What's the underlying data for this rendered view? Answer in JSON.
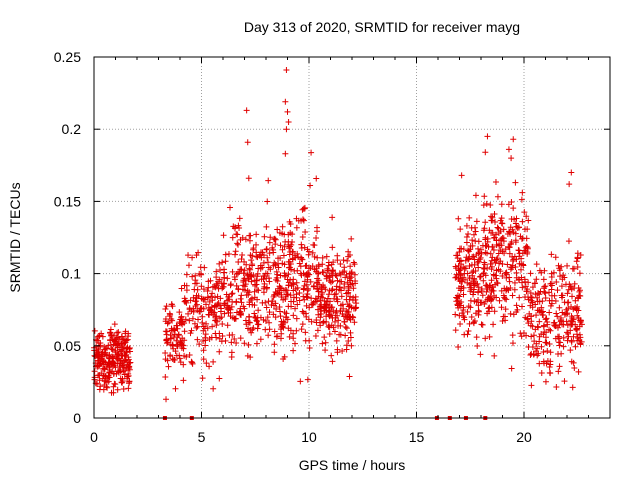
{
  "chart_data": {
    "type": "scatter",
    "title": "Day 313 of 2020, SRMTID for receiver mayg",
    "xlabel": "GPS time / hours",
    "ylabel": "SRMTID / TECUs",
    "xlim": [
      0,
      24
    ],
    "ylim": [
      0,
      0.25
    ],
    "x_ticks": [
      0,
      5,
      10,
      15,
      20
    ],
    "y_ticks": [
      0,
      0.05,
      0.1,
      0.15,
      0.2,
      0.25
    ],
    "x_tick_labels": [
      "0",
      "5",
      "10",
      "15",
      "20"
    ],
    "y_tick_labels": [
      "0",
      "0.05",
      "0.1",
      "0.15",
      "0.2",
      "0.25"
    ],
    "grid": true,
    "marker": "plus",
    "color": "#e00000",
    "series": [
      {
        "name": "SRMTID",
        "clusters": [
          {
            "x_range": [
              0.0,
              1.7
            ],
            "y_center": 0.04,
            "y_spread": 0.01,
            "count": 260
          },
          {
            "x_range": [
              3.3,
              4.2
            ],
            "y_center": 0.055,
            "y_spread": 0.012,
            "count": 90
          },
          {
            "x_range": [
              4.2,
              6.0
            ],
            "y_center": 0.075,
            "y_spread": 0.018,
            "count": 160
          },
          {
            "x_range": [
              6.0,
              9.0
            ],
            "y_center": 0.09,
            "y_spread": 0.022,
            "count": 330
          },
          {
            "x_range": [
              9.0,
              10.5
            ],
            "y_center": 0.1,
            "y_spread": 0.022,
            "count": 180
          },
          {
            "x_range": [
              10.5,
              12.2
            ],
            "y_center": 0.08,
            "y_spread": 0.018,
            "count": 220
          },
          {
            "x_range": [
              16.8,
              18.5
            ],
            "y_center": 0.095,
            "y_spread": 0.022,
            "count": 230
          },
          {
            "x_range": [
              18.5,
              20.2
            ],
            "y_center": 0.105,
            "y_spread": 0.025,
            "count": 200
          },
          {
            "x_range": [
              20.2,
              22.7
            ],
            "y_center": 0.07,
            "y_spread": 0.02,
            "count": 260
          }
        ],
        "peaks": [
          {
            "x": 8.95,
            "y": 0.241
          },
          {
            "x": 8.9,
            "y": 0.219
          },
          {
            "x": 7.1,
            "y": 0.213
          },
          {
            "x": 9.0,
            "y": 0.212
          },
          {
            "x": 9.05,
            "y": 0.205
          },
          {
            "x": 8.95,
            "y": 0.2
          },
          {
            "x": 18.3,
            "y": 0.195
          },
          {
            "x": 7.15,
            "y": 0.191
          },
          {
            "x": 19.5,
            "y": 0.193
          },
          {
            "x": 19.3,
            "y": 0.186
          },
          {
            "x": 18.2,
            "y": 0.184
          },
          {
            "x": 8.9,
            "y": 0.183
          },
          {
            "x": 19.4,
            "y": 0.18
          },
          {
            "x": 17.1,
            "y": 0.168
          },
          {
            "x": 22.2,
            "y": 0.17
          },
          {
            "x": 7.2,
            "y": 0.166
          },
          {
            "x": 10.05,
            "y": 0.161
          },
          {
            "x": 22.1,
            "y": 0.162
          },
          {
            "x": 19.6,
            "y": 0.163
          },
          {
            "x": 3.35,
            "y": 0.013
          }
        ],
        "zero_x": [
          3.3,
          4.55,
          15.95,
          16.55,
          17.3,
          18.2
        ]
      }
    ]
  }
}
